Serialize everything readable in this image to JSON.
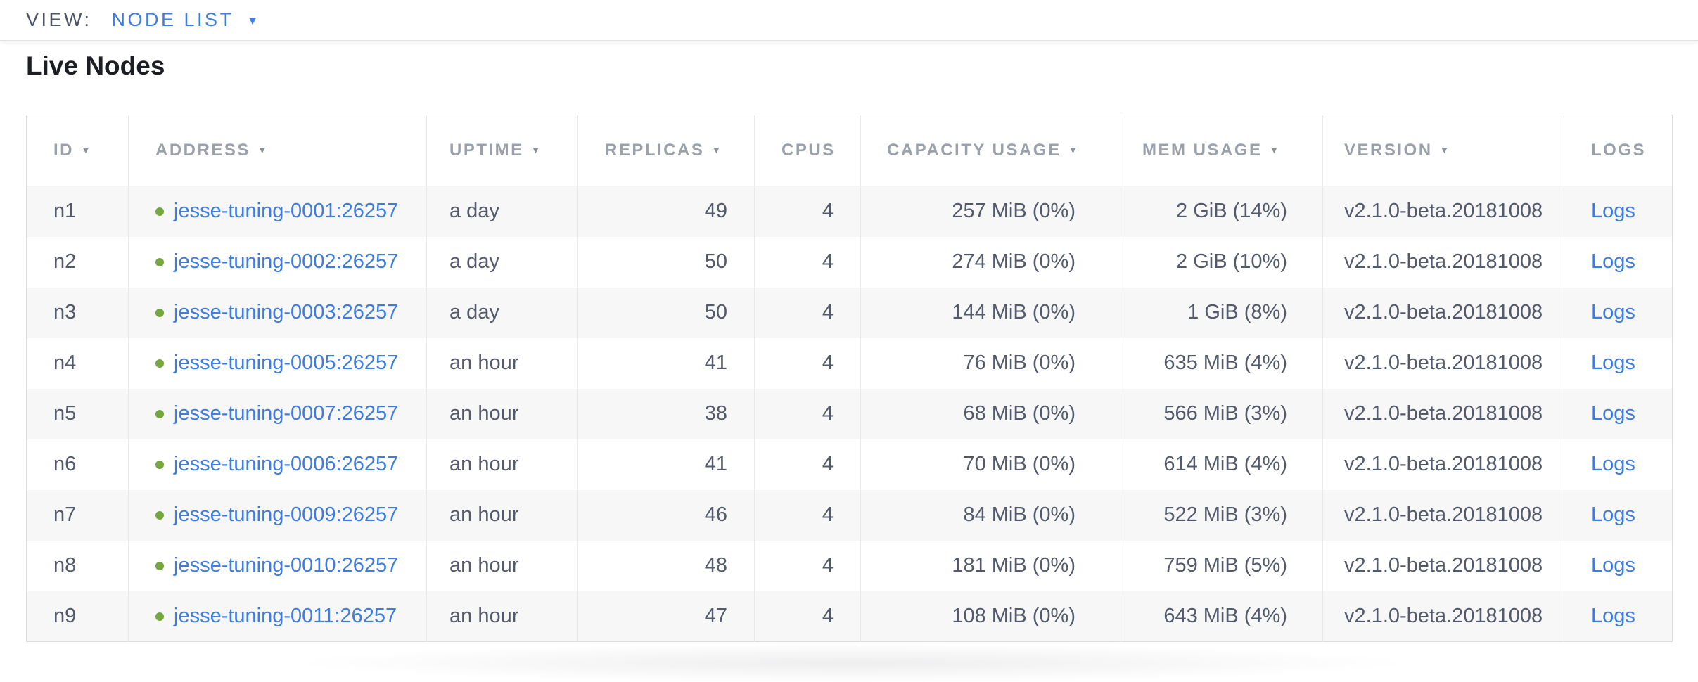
{
  "toolbar": {
    "label": "VIEW:",
    "selected_view": "NODE LIST"
  },
  "heading": "Live Nodes",
  "icons": {
    "caret_down": "▼",
    "sort_caret": "▼"
  },
  "colors": {
    "link_blue": "#3d7ce2",
    "status_live_green": "#76a63f",
    "header_text": "#9ba1ab",
    "body_text": "#525a6c",
    "title_text": "#1c1e24",
    "view_label_text": "#4d5566",
    "row_stripe": "#f7f7f8",
    "table_border": "#dcdcdd",
    "column_border": "#e9e9ea"
  },
  "table": {
    "columns": [
      {
        "key": "id",
        "label": "ID",
        "sortable": true,
        "align": "left"
      },
      {
        "key": "address",
        "label": "ADDRESS",
        "sortable": true,
        "align": "left"
      },
      {
        "key": "uptime",
        "label": "UPTIME",
        "sortable": true,
        "align": "left"
      },
      {
        "key": "replicas",
        "label": "REPLICAS",
        "sortable": true,
        "align": "right"
      },
      {
        "key": "cpus",
        "label": "CPUS",
        "sortable": false,
        "align": "right"
      },
      {
        "key": "capacity",
        "label": "CAPACITY USAGE",
        "sortable": true,
        "align": "right"
      },
      {
        "key": "mem",
        "label": "MEM USAGE",
        "sortable": true,
        "align": "right"
      },
      {
        "key": "version",
        "label": "VERSION",
        "sortable": true,
        "align": "left"
      },
      {
        "key": "logs",
        "label": "LOGS",
        "sortable": false,
        "align": "left"
      }
    ],
    "rows": [
      {
        "id": "n1",
        "status": "live",
        "address": "jesse-tuning-0001:26257",
        "uptime": "a day",
        "replicas": "49",
        "cpus": "4",
        "capacity": "257 MiB (0%)",
        "mem": "2 GiB (14%)",
        "version": "v2.1.0-beta.20181008",
        "logs": "Logs"
      },
      {
        "id": "n2",
        "status": "live",
        "address": "jesse-tuning-0002:26257",
        "uptime": "a day",
        "replicas": "50",
        "cpus": "4",
        "capacity": "274 MiB (0%)",
        "mem": "2 GiB (10%)",
        "version": "v2.1.0-beta.20181008",
        "logs": "Logs"
      },
      {
        "id": "n3",
        "status": "live",
        "address": "jesse-tuning-0003:26257",
        "uptime": "a day",
        "replicas": "50",
        "cpus": "4",
        "capacity": "144 MiB (0%)",
        "mem": "1 GiB (8%)",
        "version": "v2.1.0-beta.20181008",
        "logs": "Logs"
      },
      {
        "id": "n4",
        "status": "live",
        "address": "jesse-tuning-0005:26257",
        "uptime": "an hour",
        "replicas": "41",
        "cpus": "4",
        "capacity": "76 MiB (0%)",
        "mem": "635 MiB (4%)",
        "version": "v2.1.0-beta.20181008",
        "logs": "Logs"
      },
      {
        "id": "n5",
        "status": "live",
        "address": "jesse-tuning-0007:26257",
        "uptime": "an hour",
        "replicas": "38",
        "cpus": "4",
        "capacity": "68 MiB (0%)",
        "mem": "566 MiB (3%)",
        "version": "v2.1.0-beta.20181008",
        "logs": "Logs"
      },
      {
        "id": "n6",
        "status": "live",
        "address": "jesse-tuning-0006:26257",
        "uptime": "an hour",
        "replicas": "41",
        "cpus": "4",
        "capacity": "70 MiB (0%)",
        "mem": "614 MiB (4%)",
        "version": "v2.1.0-beta.20181008",
        "logs": "Logs"
      },
      {
        "id": "n7",
        "status": "live",
        "address": "jesse-tuning-0009:26257",
        "uptime": "an hour",
        "replicas": "46",
        "cpus": "4",
        "capacity": "84 MiB (0%)",
        "mem": "522 MiB (3%)",
        "version": "v2.1.0-beta.20181008",
        "logs": "Logs"
      },
      {
        "id": "n8",
        "status": "live",
        "address": "jesse-tuning-0010:26257",
        "uptime": "an hour",
        "replicas": "48",
        "cpus": "4",
        "capacity": "181 MiB (0%)",
        "mem": "759 MiB (5%)",
        "version": "v2.1.0-beta.20181008",
        "logs": "Logs"
      },
      {
        "id": "n9",
        "status": "live",
        "address": "jesse-tuning-0011:26257",
        "uptime": "an hour",
        "replicas": "47",
        "cpus": "4",
        "capacity": "108 MiB (0%)",
        "mem": "643 MiB (4%)",
        "version": "v2.1.0-beta.20181008",
        "logs": "Logs"
      }
    ]
  }
}
